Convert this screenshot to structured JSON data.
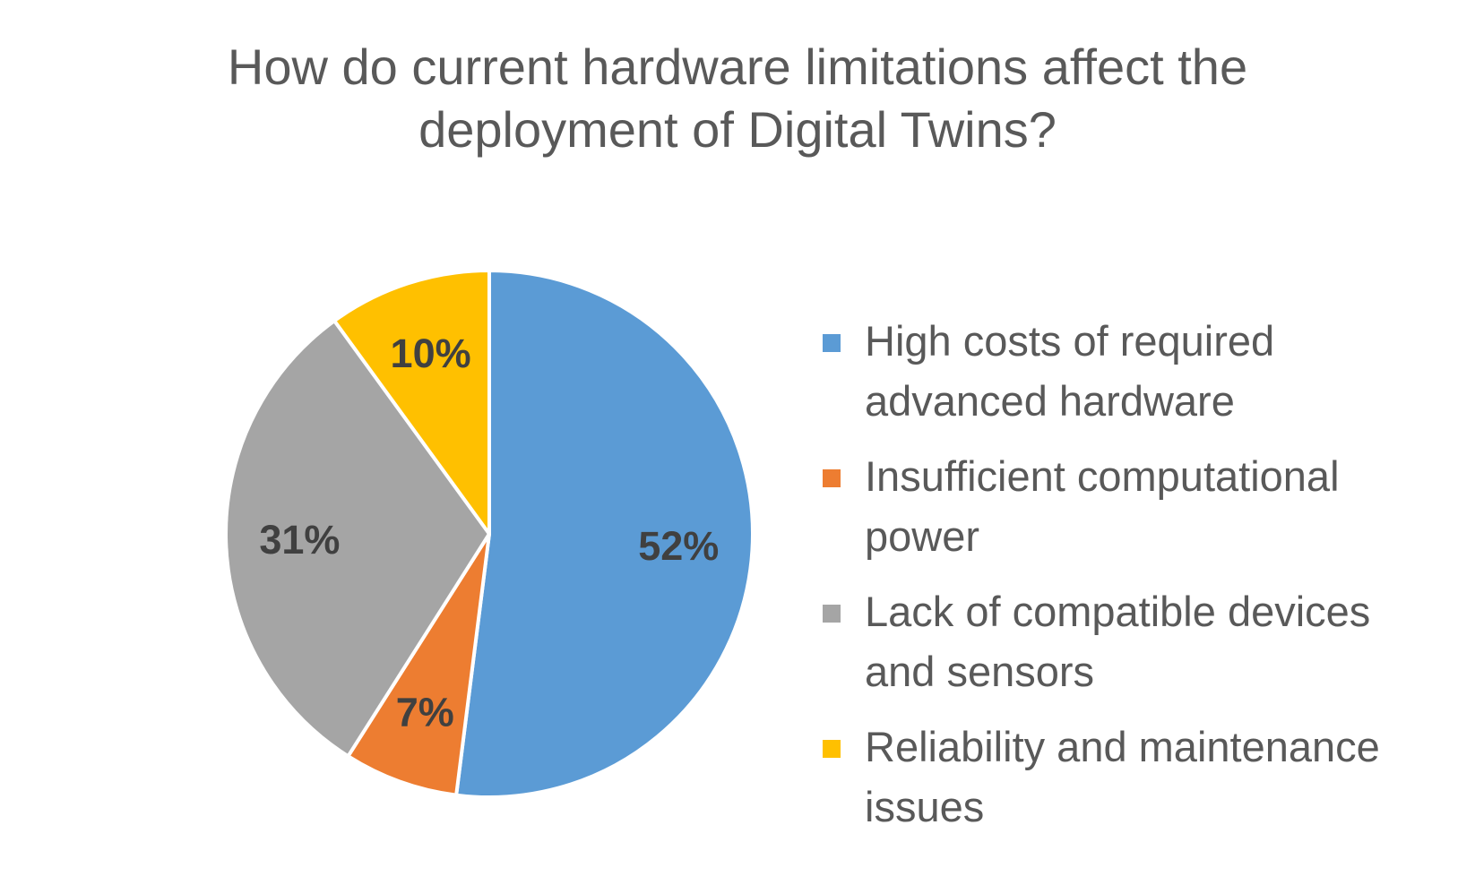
{
  "chart_data": {
    "type": "pie",
    "title_lines": [
      "How do current hardware limitations affect the",
      "deployment of Digital Twins?"
    ],
    "slices": [
      {
        "label": "High costs of required\nadvanced hardware",
        "value": 52,
        "display": "52%",
        "color": "#5B9BD5"
      },
      {
        "label": "Insufficient computational\npower",
        "value": 7,
        "display": "7%",
        "color": "#ED7D31"
      },
      {
        "label": "Lack of compatible devices\nand sensors",
        "value": 31,
        "display": "31%",
        "color": "#A5A5A5"
      },
      {
        "label": "Reliability and maintenance\nissues",
        "value": 10,
        "display": "10%",
        "color": "#FFC000"
      }
    ],
    "legend_position": "right",
    "start_angle": "12 o'clock, clockwise"
  }
}
